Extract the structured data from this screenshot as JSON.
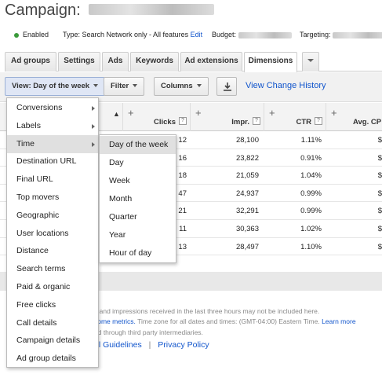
{
  "header": {
    "title": "Campaign:"
  },
  "status": {
    "enabled_label": "Enabled",
    "type_label": "Type: Search Network only - All features",
    "edit_link": "Edit",
    "budget_label": "Budget:",
    "targeting_label": "Targeting:"
  },
  "tabs": [
    {
      "label": "Ad groups"
    },
    {
      "label": "Settings"
    },
    {
      "label": "Ads"
    },
    {
      "label": "Keywords"
    },
    {
      "label": "Ad extensions"
    },
    {
      "label": "Dimensions"
    }
  ],
  "toolbar": {
    "view_label": "View: Day of the week",
    "filter_label": "Filter",
    "columns_label": "Columns",
    "view_change_history": "View Change History"
  },
  "table": {
    "columns": [
      "Clicks",
      "Impr.",
      "CTR",
      "Avg. CP"
    ],
    "help_icon": "?",
    "rows": [
      {
        "clicks": "12",
        "impr": "28,100",
        "ctr": "1.11%",
        "avg": "$"
      },
      {
        "clicks": "16",
        "impr": "23,822",
        "ctr": "0.91%",
        "avg": "$"
      },
      {
        "clicks": "18",
        "impr": "21,059",
        "ctr": "1.04%",
        "avg": "$"
      },
      {
        "clicks": "47",
        "impr": "24,937",
        "ctr": "0.99%",
        "avg": "$"
      },
      {
        "clicks": "21",
        "impr": "32,291",
        "ctr": "0.99%",
        "avg": "$"
      },
      {
        "clicks": "11",
        "impr": "30,363",
        "ctr": "1.02%",
        "avg": "$"
      },
      {
        "clicks": "13",
        "impr": "28,497",
        "ctr": "1.10%",
        "avg": "$"
      }
    ]
  },
  "menu": {
    "items": [
      {
        "label": "Conversions",
        "has_sub": true
      },
      {
        "label": "Labels",
        "has_sub": true
      },
      {
        "label": "Time",
        "has_sub": true
      },
      {
        "label": "Destination URL",
        "has_sub": false
      },
      {
        "label": "Final URL",
        "has_sub": false
      },
      {
        "label": "Top movers",
        "has_sub": false
      },
      {
        "label": "Geographic",
        "has_sub": false
      },
      {
        "label": "User locations",
        "has_sub": false
      },
      {
        "label": "Distance",
        "has_sub": false
      },
      {
        "label": "Search terms",
        "has_sub": false
      },
      {
        "label": "Paid & organic",
        "has_sub": false
      },
      {
        "label": "Free clicks",
        "has_sub": false
      },
      {
        "label": "Call details",
        "has_sub": false
      },
      {
        "label": "Campaign details",
        "has_sub": false
      },
      {
        "label": "Ad group details",
        "has_sub": false
      }
    ],
    "active": "Time"
  },
  "submenu": {
    "items": [
      "Day of the week",
      "Day",
      "Week",
      "Month",
      "Quarter",
      "Year",
      "Hour of day"
    ],
    "active": "Day of the week"
  },
  "footer": {
    "line1": "s and impressions received in the last three hours may not be included here.",
    "line2_link": "some metrics.",
    "line2_text": " Time zone for all dates and times: (GMT-04:00) Eastern Time.",
    "line2_more": "Learn more",
    "line3": "ed through third party intermediaries.",
    "guidelines_link": "al Guidelines",
    "separator": "|",
    "privacy_link": "Privacy Policy"
  },
  "colors": {
    "link": "#1155cc",
    "status_green": "#3a9a3a",
    "menu_hover": "#e0e0e0"
  }
}
